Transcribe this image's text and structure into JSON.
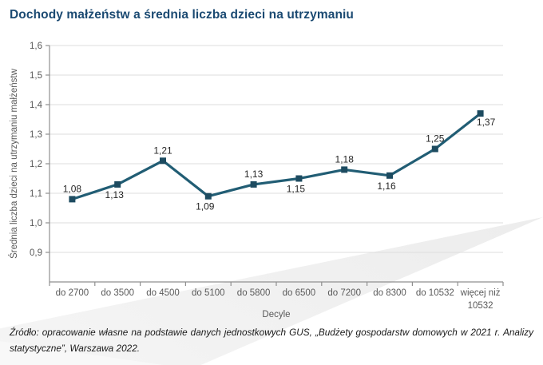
{
  "page": {
    "title": "Dochody małżeństw a średnia liczba dzieci na utrzymaniu",
    "source": "Źródło: opracowanie własne na podstawie danych jednostkowych GUS, „Budżety gospodarstw domowych w 2021 r. Analizy statystyczne”, Warszawa 2022."
  },
  "colors": {
    "title_text": "#1b4a72",
    "series_line": "#215d74",
    "series_marker": "#1d4b60",
    "axis_line": "#8f8f8f",
    "gridline": "#dddddd",
    "tick_text": "#595959",
    "value_label_text": "#262626",
    "watermark": "#ededed"
  },
  "chart_data": {
    "type": "line",
    "title": "Dochody małżeństw a średnia liczba dzieci na utrzymaniu",
    "categories": [
      "do 2700",
      "do 3500",
      "do 4500",
      "do 5100",
      "do 5800",
      "do 6500",
      "do 7200",
      "do 8300",
      "do 10532",
      "więcej niż\n10532"
    ],
    "values": [
      1.08,
      1.13,
      1.21,
      1.09,
      1.13,
      1.15,
      1.18,
      1.16,
      1.25,
      1.37
    ],
    "value_labels": [
      "1,08",
      "1,13",
      "1,21",
      "1,09",
      "1,13",
      "1,15",
      "1,18",
      "1,16",
      "1,25",
      "1,37"
    ],
    "label_positions": [
      "above",
      "below",
      "above",
      "below",
      "above",
      "below",
      "above",
      "below",
      "above",
      "below-right"
    ],
    "xlabel": "Decyle",
    "ylabel": "Średnia liczba dzieci na utrzymaniu małżeństw",
    "ylim": [
      0.8,
      1.6
    ],
    "yticks": [
      1.6,
      1.5,
      1.4,
      1.3,
      1.2,
      1.1,
      1.0,
      0.9
    ],
    "ytick_labels": [
      "1,6",
      "1,5",
      "1,4",
      "1,3",
      "1,2",
      "1,1",
      "1,0",
      "0,9"
    ],
    "grid": true,
    "legend": "none",
    "marker": "square"
  }
}
